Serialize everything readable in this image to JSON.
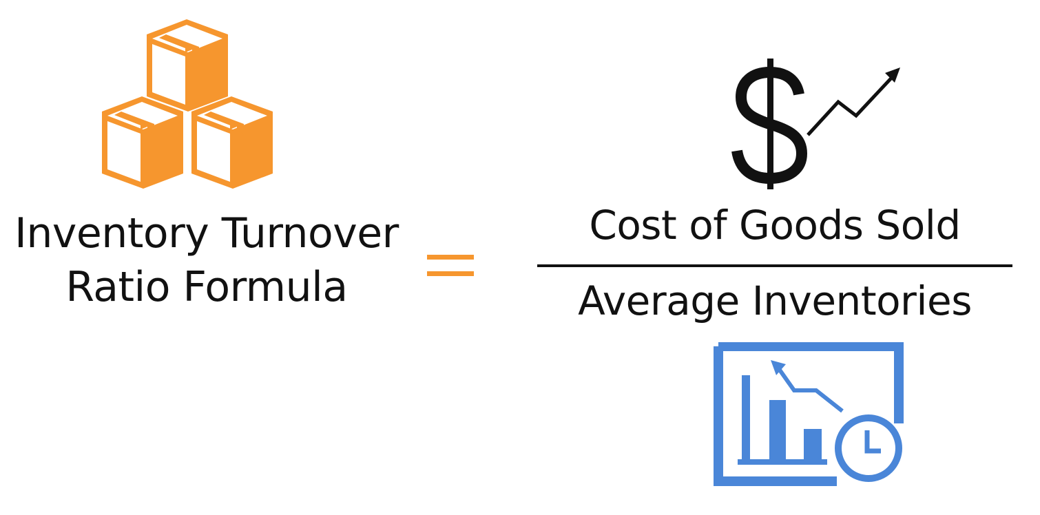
{
  "title": {
    "line1": "Inventory Turnover",
    "line2": "Ratio Formula"
  },
  "formula": {
    "numerator": "Cost of Goods Sold",
    "denominator": "Average Inventories"
  },
  "icons": {
    "left": "stacked-boxes-icon",
    "numerator": "dollar-trend-icon",
    "denominator": "chart-clock-icon"
  },
  "colors": {
    "orange": "#F6962E",
    "blue": "#4A86D8",
    "text": "#111111"
  }
}
